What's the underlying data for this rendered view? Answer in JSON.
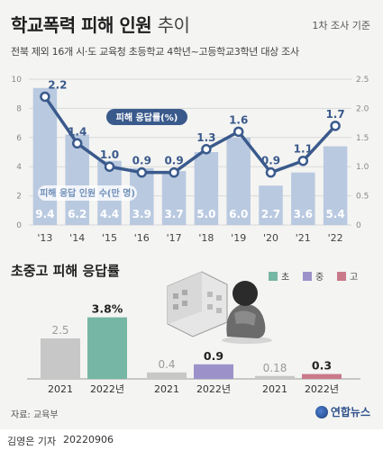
{
  "header": {
    "title_main": "학교폭력 피해 인원",
    "title_suffix": "추이",
    "unit": "1차 조사 기준",
    "subtitle": "전북 제외 16개 시·도 교육청 초등학교 4학년~고등학교3학년 대상 조사"
  },
  "colors": {
    "bar": "#b9c9e0",
    "line": "#3a5a8c",
    "elementary": "#76b6a4",
    "middle": "#9c92c9",
    "high": "#c97a8a",
    "prior": "#c7c7c7"
  },
  "chart_data": [
    {
      "type": "bar+line",
      "categories": [
        "'13",
        "'14",
        "'15",
        "'16",
        "'17",
        "'18",
        "'19",
        "'20",
        "'21",
        "'22"
      ],
      "series": [
        {
          "name": "피해 응답 인원 수(만 명)",
          "type": "bar",
          "axis": "left",
          "values": [
            9.4,
            6.2,
            4.4,
            3.9,
            3.7,
            5.0,
            6.0,
            2.7,
            3.6,
            5.4
          ]
        },
        {
          "name": "피해 응답률(%)",
          "type": "line",
          "axis": "right",
          "values": [
            2.2,
            1.4,
            1.0,
            0.9,
            0.9,
            1.3,
            1.6,
            0.9,
            1.1,
            1.7
          ]
        }
      ],
      "ylim_left": [
        0,
        10
      ],
      "ylim_right": [
        0,
        2.5
      ],
      "yticks_left": [
        "0",
        "2",
        "4",
        "6",
        "8",
        "10"
      ],
      "yticks_right": [
        "0",
        "0.5",
        "1.0",
        "1.5",
        "2.0",
        "2.5"
      ],
      "grid": true
    },
    {
      "type": "bar",
      "title": "초중고 피해 응답률",
      "groups": [
        {
          "name": "초",
          "categories": [
            "2021",
            "2022년"
          ],
          "values": [
            2.5,
            3.8
          ],
          "labels": [
            "2.5",
            "3.8%"
          ]
        },
        {
          "name": "중",
          "categories": [
            "2021",
            "2022년"
          ],
          "values": [
            0.4,
            0.9
          ],
          "labels": [
            "0.4",
            "0.9"
          ]
        },
        {
          "name": "고",
          "categories": [
            "2021",
            "2022년"
          ],
          "values": [
            0.18,
            0.3
          ],
          "labels": [
            "0.18",
            "0.3"
          ]
        }
      ],
      "legend": [
        "초",
        "중",
        "고"
      ],
      "legend_position": "top-right"
    }
  ],
  "footer": {
    "source": "자료: 교육부",
    "logo": "연합뉴스",
    "reporter": "김영은 기자",
    "date": "20220906"
  }
}
